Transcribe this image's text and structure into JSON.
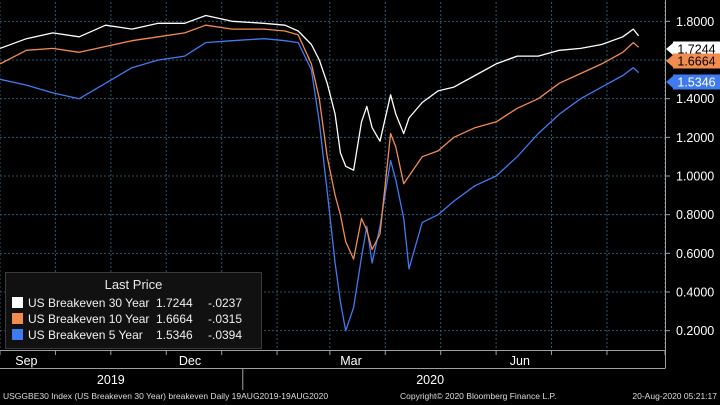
{
  "chart_data": {
    "type": "line",
    "ylim": [
      0.1,
      1.9
    ],
    "y_ticks": [
      "1.8000",
      "1.6000",
      "1.4000",
      "1.2000",
      "1.0000",
      "0.8000",
      "0.6000",
      "0.4000",
      "0.2000"
    ],
    "y_tick_values": [
      1.8,
      1.6,
      1.4,
      1.2,
      1.0,
      0.8,
      0.6,
      0.4,
      0.2
    ],
    "x_range": [
      0,
      252
    ],
    "month_labels": [
      {
        "label": "Sep",
        "x": 10
      },
      {
        "label": "Dec",
        "x": 72
      },
      {
        "label": "Mar",
        "x": 133
      },
      {
        "label": "Jun",
        "x": 197
      }
    ],
    "month_ticks": [
      0,
      21,
      42,
      63,
      84,
      105,
      125,
      146,
      167,
      188,
      209,
      230,
      252
    ],
    "year_labels": [
      {
        "label": "2019",
        "x": 42
      },
      {
        "label": "2020",
        "x": 163
      }
    ],
    "year_divider_x": 92,
    "series": [
      {
        "name": "US Breakeven 30 Year",
        "color": "#ffffff",
        "last": "1.7244",
        "change": "-.0237",
        "points": [
          [
            0,
            1.66
          ],
          [
            10,
            1.71
          ],
          [
            20,
            1.74
          ],
          [
            30,
            1.72
          ],
          [
            40,
            1.78
          ],
          [
            50,
            1.76
          ],
          [
            60,
            1.79
          ],
          [
            70,
            1.79
          ],
          [
            78,
            1.83
          ],
          [
            88,
            1.8
          ],
          [
            100,
            1.79
          ],
          [
            108,
            1.78
          ],
          [
            113,
            1.75
          ],
          [
            118,
            1.68
          ],
          [
            121,
            1.6
          ],
          [
            124,
            1.48
          ],
          [
            127,
            1.32
          ],
          [
            129,
            1.12
          ],
          [
            131,
            1.05
          ],
          [
            134,
            1.03
          ],
          [
            137,
            1.28
          ],
          [
            139,
            1.36
          ],
          [
            141,
            1.25
          ],
          [
            144,
            1.18
          ],
          [
            148,
            1.42
          ],
          [
            150,
            1.32
          ],
          [
            153,
            1.22
          ],
          [
            155,
            1.3
          ],
          [
            160,
            1.38
          ],
          [
            166,
            1.44
          ],
          [
            172,
            1.46
          ],
          [
            180,
            1.52
          ],
          [
            188,
            1.58
          ],
          [
            196,
            1.62
          ],
          [
            204,
            1.62
          ],
          [
            212,
            1.65
          ],
          [
            220,
            1.66
          ],
          [
            228,
            1.68
          ],
          [
            236,
            1.72
          ],
          [
            240,
            1.76
          ],
          [
            242,
            1.7244
          ]
        ]
      },
      {
        "name": "US Breakeven 10 Year",
        "color": "#f28c4e",
        "last": "1.6664",
        "change": "-.0315",
        "points": [
          [
            0,
            1.58
          ],
          [
            10,
            1.65
          ],
          [
            20,
            1.66
          ],
          [
            30,
            1.64
          ],
          [
            40,
            1.67
          ],
          [
            50,
            1.7
          ],
          [
            60,
            1.72
          ],
          [
            70,
            1.74
          ],
          [
            78,
            1.78
          ],
          [
            88,
            1.76
          ],
          [
            100,
            1.76
          ],
          [
            108,
            1.75
          ],
          [
            113,
            1.73
          ],
          [
            118,
            1.58
          ],
          [
            121,
            1.4
          ],
          [
            124,
            1.1
          ],
          [
            127,
            0.9
          ],
          [
            129,
            0.8
          ],
          [
            131,
            0.66
          ],
          [
            134,
            0.57
          ],
          [
            137,
            0.78
          ],
          [
            139,
            0.72
          ],
          [
            141,
            0.62
          ],
          [
            144,
            0.7
          ],
          [
            148,
            1.22
          ],
          [
            150,
            1.15
          ],
          [
            153,
            0.96
          ],
          [
            155,
            1.0
          ],
          [
            160,
            1.1
          ],
          [
            166,
            1.13
          ],
          [
            172,
            1.2
          ],
          [
            180,
            1.25
          ],
          [
            188,
            1.28
          ],
          [
            196,
            1.35
          ],
          [
            204,
            1.4
          ],
          [
            212,
            1.48
          ],
          [
            220,
            1.53
          ],
          [
            228,
            1.58
          ],
          [
            236,
            1.64
          ],
          [
            240,
            1.69
          ],
          [
            242,
            1.6664
          ]
        ]
      },
      {
        "name": "US Breakeven 5 Year",
        "color": "#3f7bf0",
        "last": "1.5346",
        "change": "-.0394",
        "points": [
          [
            0,
            1.5
          ],
          [
            10,
            1.47
          ],
          [
            20,
            1.43
          ],
          [
            30,
            1.4
          ],
          [
            40,
            1.48
          ],
          [
            50,
            1.56
          ],
          [
            60,
            1.6
          ],
          [
            70,
            1.62
          ],
          [
            78,
            1.69
          ],
          [
            88,
            1.7
          ],
          [
            100,
            1.71
          ],
          [
            108,
            1.7
          ],
          [
            113,
            1.69
          ],
          [
            118,
            1.55
          ],
          [
            121,
            1.28
          ],
          [
            124,
            0.92
          ],
          [
            127,
            0.55
          ],
          [
            129,
            0.35
          ],
          [
            131,
            0.2
          ],
          [
            134,
            0.32
          ],
          [
            137,
            0.58
          ],
          [
            139,
            0.74
          ],
          [
            141,
            0.55
          ],
          [
            144,
            0.74
          ],
          [
            148,
            1.08
          ],
          [
            150,
            0.98
          ],
          [
            153,
            0.78
          ],
          [
            155,
            0.52
          ],
          [
            160,
            0.76
          ],
          [
            166,
            0.8
          ],
          [
            172,
            0.87
          ],
          [
            180,
            0.95
          ],
          [
            188,
            1.0
          ],
          [
            196,
            1.1
          ],
          [
            204,
            1.22
          ],
          [
            212,
            1.32
          ],
          [
            220,
            1.4
          ],
          [
            228,
            1.46
          ],
          [
            236,
            1.52
          ],
          [
            240,
            1.56
          ],
          [
            242,
            1.5346
          ]
        ]
      }
    ]
  },
  "legend": {
    "title": "Last Price",
    "rows": [
      {
        "name": "US Breakeven 30 Year",
        "value": "1.7244",
        "change": "-.0237"
      },
      {
        "name": "US Breakeven 10 Year",
        "value": "1.6664",
        "change": "-.0315"
      },
      {
        "name": "US Breakeven 5 Year",
        "value": "1.5346",
        "change": "-.0394"
      }
    ]
  },
  "footer": {
    "left": "USGGBE30 Index (US Breakeven 30 Year) breakeven  Daily 19AUG2019-19AUG2020",
    "center": "Copyright© 2020 Bloomberg Finance L.P.",
    "right": "20-Aug-2020 05:21:17"
  },
  "colors": {
    "background": "#000000",
    "gridline": "#2c5673",
    "axis_text": "#ffffff",
    "panel_border": "#a0a0a0"
  }
}
